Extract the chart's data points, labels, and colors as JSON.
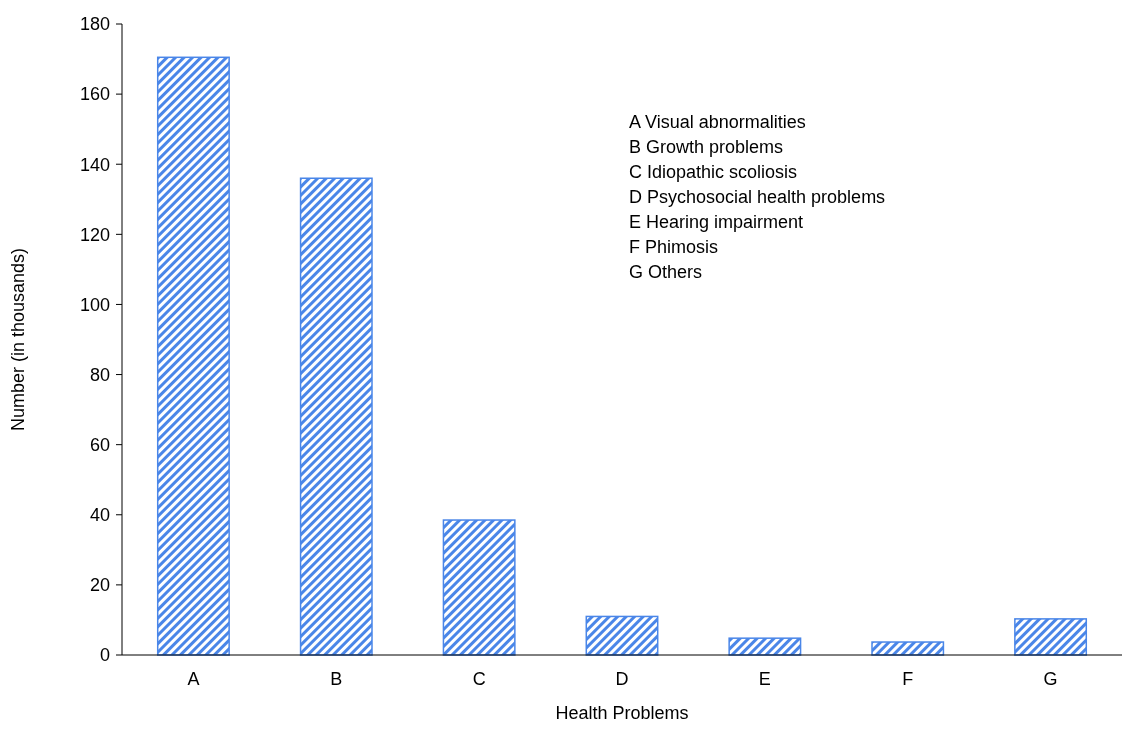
{
  "chart_data": {
    "type": "bar",
    "xlabel": "Health Problems",
    "ylabel": "Number (in thousands)",
    "categories": [
      "A",
      "B",
      "C",
      "D",
      "E",
      "F",
      "G"
    ],
    "values": [
      170.5,
      136,
      38.5,
      11,
      4.8,
      3.7,
      10.3
    ],
    "color": "#4a86e8",
    "ylim": [
      0,
      180
    ],
    "yticks": [
      0,
      20,
      40,
      60,
      80,
      100,
      120,
      140,
      160,
      180
    ],
    "grid": false,
    "annotations": [
      "A  Visual abnormalities",
      "B  Growth problems",
      "C  Idiopathic scoliosis",
      "D  Psychosocial health problems",
      "E  Hearing impairment",
      "F  Phimosis",
      "G  Others"
    ]
  }
}
